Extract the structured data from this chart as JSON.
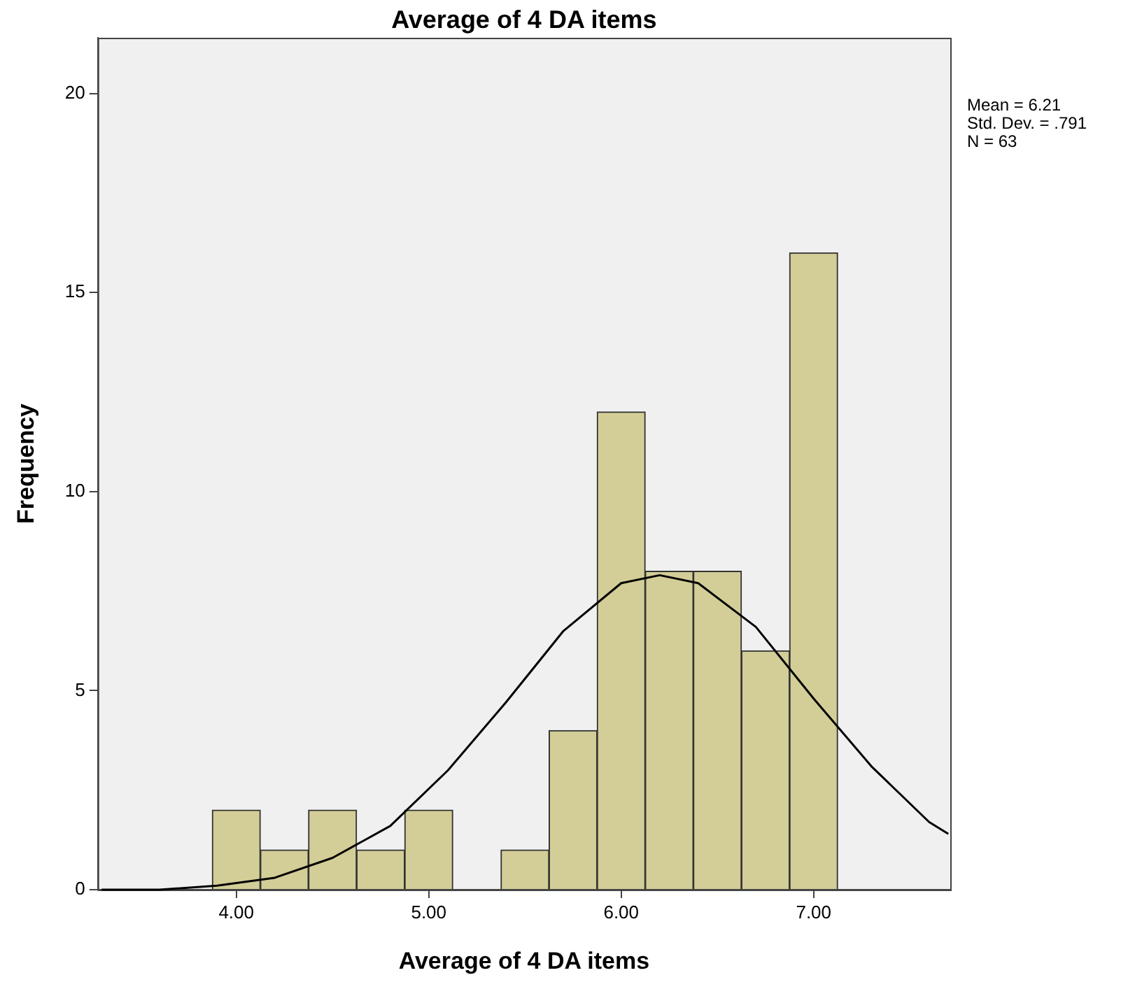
{
  "chart_data": {
    "type": "histogram",
    "title": "Average of 4 DA items",
    "xlabel": "Average of 4 DA items",
    "ylabel": "Frequency",
    "bins": [
      3.875,
      4.125,
      4.375,
      4.625,
      4.875,
      5.125,
      5.375,
      5.625,
      5.875,
      6.125,
      6.375,
      6.625,
      6.875,
      7.125
    ],
    "values": [
      2,
      1,
      2,
      1,
      2,
      0,
      1,
      4,
      12,
      8,
      8,
      6,
      16
    ],
    "color": "#d3ce97",
    "series": [
      {
        "type": "line",
        "color": "#000000",
        "x": [
          3.3,
          3.6,
          3.9,
          4.2,
          4.5,
          4.8,
          5.1,
          5.4,
          5.7,
          6.0,
          6.2,
          6.4,
          6.7,
          7.0,
          7.3,
          7.6,
          7.7
        ],
        "values": [
          0.0,
          0.0,
          0.1,
          0.3,
          0.8,
          1.6,
          3.0,
          4.7,
          6.5,
          7.7,
          7.9,
          7.7,
          6.6,
          4.8,
          3.1,
          1.7,
          1.4
        ]
      }
    ],
    "xlim": [
      3.28,
      7.71
    ],
    "xticks": [
      {
        "value": 4,
        "label": "4.00"
      },
      {
        "value": 5,
        "label": "5.00"
      },
      {
        "value": 6,
        "label": "6.00"
      },
      {
        "value": 7,
        "label": "7.00"
      }
    ],
    "ylim": [
      0,
      21.4
    ],
    "yticks": [
      0,
      5,
      10,
      15,
      20
    ],
    "grid": false,
    "legend": false,
    "marker": "none",
    "line_style": "solid",
    "annotations": [
      "Mean = 6.21",
      "Std. Dev. = .791",
      "N = 63"
    ]
  }
}
